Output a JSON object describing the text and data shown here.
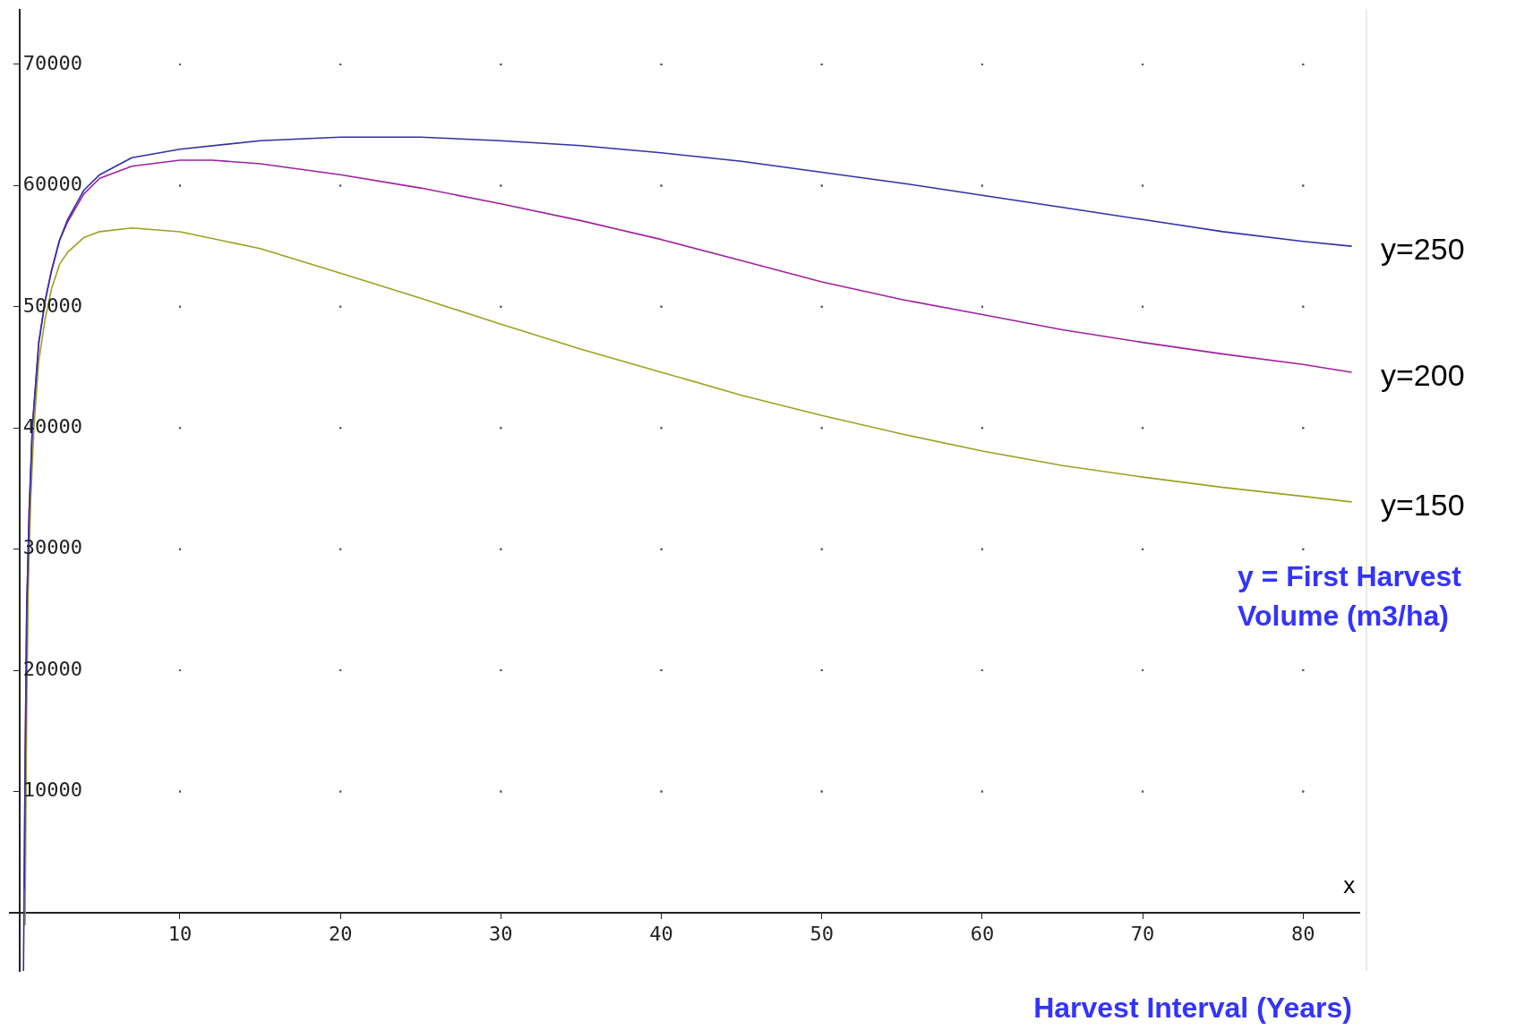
{
  "chart_data": {
    "type": "line",
    "xlabel": "Harvest Interval (Years)",
    "annotations": [
      "x",
      "y = First Harvest Volume (m3/ha)"
    ],
    "xlim": [
      -0.6,
      83.5
    ],
    "ylim": [
      -4800,
      74500
    ],
    "xticks": [
      10,
      20,
      30,
      40,
      50,
      60,
      70,
      80
    ],
    "yticks": [
      10000,
      20000,
      30000,
      40000,
      50000,
      60000,
      70000
    ],
    "grid": true,
    "legend": false,
    "marker": "none",
    "line_style": "solid",
    "series": [
      {
        "name": "y=250",
        "color": "#3030a8",
        "x": [
          0.25,
          0.35,
          0.45,
          0.6,
          0.8,
          1.2,
          1.6,
          2,
          2.5,
          3,
          4,
          5,
          7,
          10,
          15,
          20,
          25,
          30,
          35,
          40,
          45,
          50,
          55,
          60,
          65,
          70,
          75,
          80,
          83
        ],
        "values": [
          -4800,
          12000,
          25000,
          33000,
          40000,
          47000,
          50500,
          53000,
          55500,
          57200,
          59600,
          60900,
          62300,
          63000,
          63700,
          64000,
          64000,
          63700,
          63300,
          62700,
          62000,
          61100,
          60200,
          59200,
          58200,
          57200,
          56200,
          55400,
          55000
        ]
      },
      {
        "name": "y=200",
        "color": "#a020a0",
        "x": [
          0.3,
          0.35,
          0.45,
          0.6,
          0.8,
          1.2,
          1.6,
          2,
          2.5,
          3,
          4,
          5,
          7,
          10,
          12,
          15,
          20,
          25,
          30,
          35,
          40,
          45,
          50,
          55,
          60,
          65,
          70,
          75,
          80,
          83
        ],
        "values": [
          2000,
          12000,
          25000,
          33000,
          40000,
          47000,
          50500,
          53000,
          55500,
          57000,
          59300,
          60600,
          61600,
          62100,
          62100,
          61800,
          60900,
          59800,
          58500,
          57100,
          55550,
          53800,
          52060,
          50600,
          49360,
          48100,
          47060,
          46100,
          45240,
          44600
        ]
      },
      {
        "name": "y=150",
        "color": "#a0a020",
        "x": [
          0.35,
          0.45,
          0.55,
          0.7,
          0.9,
          1.2,
          1.6,
          2,
          2.5,
          3,
          4,
          5,
          7,
          10,
          15,
          20,
          25,
          30,
          35,
          40,
          45,
          50,
          55,
          60,
          65,
          70,
          75,
          80,
          83
        ],
        "values": [
          -1000,
          17000,
          27000,
          34000,
          40000,
          45500,
          49000,
          51500,
          53500,
          54500,
          55700,
          56200,
          56500,
          56190,
          54800,
          52780,
          50700,
          48570,
          46500,
          44600,
          42700,
          41030,
          39500,
          38100,
          36900,
          35950,
          35100,
          34360,
          33900
        ]
      }
    ]
  }
}
